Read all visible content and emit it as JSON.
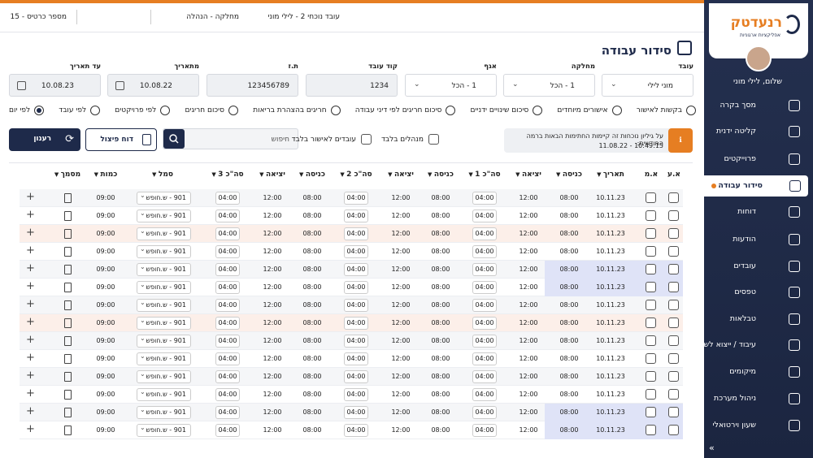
{
  "topbar": {
    "employee": "עובד נוכחי 2 - לילי מוני",
    "department": "מחלקה - הנהלה",
    "card": "מספר כרטיס - 15"
  },
  "sidebar": {
    "logo": "רנעדטק",
    "tagline": "אפליקציות ארגוניות",
    "greeting": "שלום, לילי מוני",
    "menu": [
      "מסך בקרה",
      "קליטה ידנית",
      "פרוייקטים",
      "סידור עבודה",
      "דוחות",
      "הודעות",
      "עובדים",
      "טפסים",
      "טבלאות",
      "עיבוד / ייצוא לשכר",
      "מיקומים",
      "ניהול מערכת",
      "שעון וירטואלי"
    ],
    "active": 3,
    "collapse": "»"
  },
  "page": {
    "title": "סידור עבודה"
  },
  "filters": [
    {
      "label": "עובד",
      "value": "מוני לילי",
      "kind": "select"
    },
    {
      "label": "מחלקה",
      "value": "1 - הכל",
      "kind": "select"
    },
    {
      "label": "אגף",
      "value": "1 - הכל",
      "kind": "select"
    },
    {
      "label": "קוד עובד",
      "value": "1234",
      "kind": "text"
    },
    {
      "label": "ת.ז",
      "value": "123456789",
      "kind": "text"
    },
    {
      "label": "מתאריך",
      "value": "10.08.22",
      "kind": "date"
    },
    {
      "label": "עד תאריך",
      "value": "10.08.23",
      "kind": "date"
    }
  ],
  "views": {
    "options": [
      "לפי יום",
      "לפי עובד",
      "לפי פרויקטים",
      "סיכום חריגים",
      "חריגים בהצהרת בריאות",
      "סיכום חריגים לפי דיני עבודה",
      "סיכום שינויים ידניים",
      "אישורים מיוחדים",
      "בקשות לאישור"
    ],
    "selected": 0
  },
  "alert": {
    "text": "על גיליון נוכחות זה קיימות החתימות הבאות ברמה החודשית:",
    "signature": "10:49:15 - 11.08.22"
  },
  "toggles": [
    "מנהלים בלבד",
    "עובדים לאישור בלבד"
  ],
  "search": {
    "placeholder": "חיפוש"
  },
  "buttons": {
    "split": "דוח פיצול",
    "refresh": "רענון"
  },
  "table": {
    "headers": [
      "א.ע",
      "א.מ",
      "תאריך",
      "כניסה",
      "יציאה",
      "סה\"כ 1",
      "כניסה",
      "יציאה",
      "סה\"כ 2",
      "כניסה",
      "יציאה",
      "סה\"כ 3",
      "סמל",
      "כמות",
      "מסמך"
    ],
    "rows": [
      {
        "date": "10.11.23",
        "in1": "08:00",
        "out1": "12:00",
        "total1": "04:00",
        "in2": "08:00",
        "out2": "12:00",
        "total2": "04:00",
        "in3": "08:00",
        "out3": "12:00",
        "total3": "04:00",
        "code": "901 - ש.חופש",
        "qty": "09:00"
      },
      {
        "date": "10.11.23",
        "in1": "08:00",
        "out1": "12:00",
        "total1": "04:00",
        "in2": "08:00",
        "out2": "12:00",
        "total2": "04:00",
        "in3": "08:00",
        "out3": "12:00",
        "total3": "04:00",
        "code": "901 - ש.חופש",
        "qty": "09:00"
      },
      {
        "date": "10.11.23",
        "in1": "08:00",
        "out1": "12:00",
        "total1": "04:00",
        "in2": "08:00",
        "out2": "12:00",
        "total2": "04:00",
        "in3": "08:00",
        "out3": "12:00",
        "total3": "04:00",
        "code": "901 - ש.חופש",
        "qty": "09:00",
        "highlight": "warning"
      },
      {
        "date": "10.11.23",
        "in1": "08:00",
        "out1": "12:00",
        "total1": "04:00",
        "in2": "08:00",
        "out2": "12:00",
        "total2": "04:00",
        "in3": "08:00",
        "out3": "12:00",
        "total3": "04:00",
        "code": "901 - ש.חופש",
        "qty": "09:00"
      },
      {
        "date": "10.11.23",
        "in1": "08:00",
        "out1": "12:00",
        "total1": "04:00",
        "in2": "08:00",
        "out2": "12:00",
        "total2": "04:00",
        "in3": "08:00",
        "out3": "12:00",
        "total3": "04:00",
        "code": "901 - ש.חופש",
        "qty": "09:00",
        "highlight": "selected"
      },
      {
        "date": "10.11.23",
        "in1": "08:00",
        "out1": "12:00",
        "total1": "04:00",
        "in2": "08:00",
        "out2": "12:00",
        "total2": "04:00",
        "in3": "08:00",
        "out3": "12:00",
        "total3": "04:00",
        "code": "901 - ש.חופש",
        "qty": "09:00",
        "highlight": "selected"
      },
      {
        "date": "10.11.23",
        "in1": "08:00",
        "out1": "12:00",
        "total1": "04:00",
        "in2": "08:00",
        "out2": "12:00",
        "total2": "04:00",
        "in3": "08:00",
        "out3": "12:00",
        "total3": "04:00",
        "code": "901 - ש.חופש",
        "qty": "09:00"
      },
      {
        "date": "10.11.23",
        "in1": "08:00",
        "out1": "12:00",
        "total1": "04:00",
        "in2": "08:00",
        "out2": "12:00",
        "total2": "04:00",
        "in3": "08:00",
        "out3": "12:00",
        "total3": "04:00",
        "code": "901 - ש.חופש",
        "qty": "09:00",
        "highlight": "warning"
      },
      {
        "date": "10.11.23",
        "in1": "08:00",
        "out1": "12:00",
        "total1": "04:00",
        "in2": "08:00",
        "out2": "12:00",
        "total2": "04:00",
        "in3": "08:00",
        "out3": "12:00",
        "total3": "04:00",
        "code": "901 - ש.חופש",
        "qty": "09:00"
      },
      {
        "date": "10.11.23",
        "in1": "08:00",
        "out1": "12:00",
        "total1": "04:00",
        "in2": "08:00",
        "out2": "12:00",
        "total2": "04:00",
        "in3": "08:00",
        "out3": "12:00",
        "total3": "04:00",
        "code": "901 - ש.חופש",
        "qty": "09:00"
      },
      {
        "date": "10.11.23",
        "in1": "08:00",
        "out1": "12:00",
        "total1": "04:00",
        "in2": "08:00",
        "out2": "12:00",
        "total2": "04:00",
        "in3": "08:00",
        "out3": "12:00",
        "total3": "04:00",
        "code": "901 - ש.חופש",
        "qty": "09:00"
      },
      {
        "date": "10.11.23",
        "in1": "08:00",
        "out1": "12:00",
        "total1": "04:00",
        "in2": "08:00",
        "out2": "12:00",
        "total2": "04:00",
        "in3": "08:00",
        "out3": "12:00",
        "total3": "04:00",
        "code": "901 - ש.חופש",
        "qty": "09:00"
      },
      {
        "date": "10.11.23",
        "in1": "08:00",
        "out1": "12:00",
        "total1": "04:00",
        "in2": "08:00",
        "out2": "12:00",
        "total2": "04:00",
        "in3": "08:00",
        "out3": "12:00",
        "total3": "04:00",
        "code": "901 - ש.חופש",
        "qty": "09:00",
        "highlight": "selected"
      },
      {
        "date": "10.11.23",
        "in1": "08:00",
        "out1": "12:00",
        "total1": "04:00",
        "in2": "08:00",
        "out2": "12:00",
        "total2": "04:00",
        "in3": "08:00",
        "out3": "12:00",
        "total3": "04:00",
        "code": "901 - ש.חופש",
        "qty": "09:00",
        "highlight": "selected"
      }
    ]
  }
}
